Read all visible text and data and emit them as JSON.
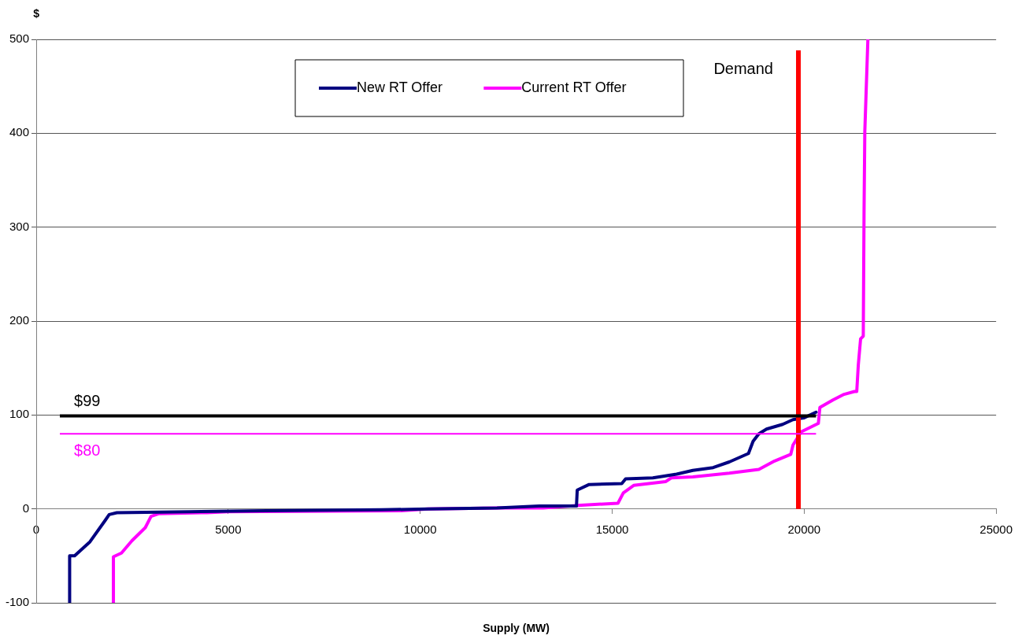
{
  "chart_data": {
    "type": "line",
    "xlabel": "Supply (MW)",
    "ylabel": "$",
    "xlim": [
      0,
      25000
    ],
    "xticks": [
      0,
      5000,
      10000,
      15000,
      20000,
      25000
    ],
    "ylim": [
      -100,
      500
    ],
    "yticks": [
      -100,
      0,
      100,
      200,
      300,
      400,
      500
    ],
    "grid": "y",
    "legend": "top",
    "marker": "none",
    "line_style": "solid",
    "series": [
      {
        "name": "New RT Offer",
        "color": "#000080",
        "x": [
          870,
          870,
          1000,
          1400,
          1800,
          1900,
          2100,
          4000,
          6000,
          9000,
          10200,
          12000,
          13100,
          14070,
          14090,
          14400,
          15250,
          15350,
          16060,
          16680,
          17100,
          17630,
          18050,
          18550,
          18670,
          18820,
          19020,
          19440,
          19710,
          20000,
          20310
        ],
        "values": [
          -100,
          -50,
          -50,
          -35,
          -12,
          -6,
          -4,
          -3,
          -2,
          -1,
          0,
          1,
          3,
          3,
          20,
          26,
          27,
          32,
          33,
          37,
          41,
          44,
          50,
          59,
          72,
          80,
          85,
          90,
          95,
          97,
          103
        ]
      },
      {
        "name": "Current RT Offer",
        "color": "#ff00ff",
        "x": [
          2010,
          2010,
          2220,
          2490,
          2840,
          2990,
          3200,
          4440,
          5000,
          9500,
          10200,
          12000,
          13200,
          14190,
          15150,
          15290,
          15560,
          16390,
          16540,
          17100,
          18050,
          18820,
          19230,
          19650,
          19710,
          19920,
          20120,
          20370,
          20410,
          20750,
          21040,
          21310,
          21370,
          21410,
          21470,
          21540,
          21560,
          21580,
          21660
        ],
        "values": [
          -100,
          -51,
          -47,
          -34,
          -20,
          -8,
          -5,
          -4,
          -3,
          -2,
          0,
          1,
          1,
          4,
          6,
          17,
          25,
          29,
          33,
          34,
          38,
          42,
          51,
          58,
          68,
          82,
          86,
          91,
          108,
          116,
          122,
          125,
          125,
          153,
          181,
          184,
          317,
          402,
          500
        ]
      }
    ],
    "ref_lines": [
      {
        "axis": "x",
        "value": 19850,
        "label": "Demand",
        "color": "#ff0000"
      },
      {
        "axis": "y",
        "value": 99,
        "label": "$99",
        "color": "#000000"
      },
      {
        "axis": "y",
        "value": 80,
        "label": "$80",
        "color": "#ff00ff"
      }
    ]
  }
}
